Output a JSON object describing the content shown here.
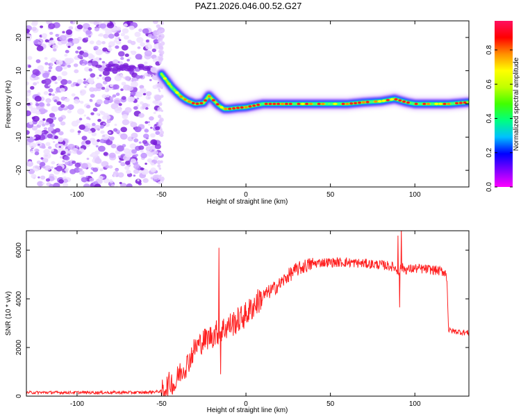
{
  "title": "PAZ1.2026.046.00.52.G27",
  "chart_data": [
    {
      "type": "heatmap",
      "title": "PAZ1.2026.046.00.52.G27",
      "xlabel": "Height of straight line (km)",
      "ylabel": "Frequency (Hz)",
      "xlim": [
        -130,
        132
      ],
      "ylim": [
        -25,
        25
      ],
      "xticks": [
        -100,
        -50,
        0,
        50,
        100
      ],
      "xtick_labels": [
        "-100",
        "-50",
        "0",
        "50",
        "100"
      ],
      "yticks": [
        -20,
        -10,
        0,
        10,
        20
      ],
      "ytick_labels": [
        "-20",
        "-10",
        "0",
        "10",
        "20"
      ],
      "noise_region_x": [
        -130,
        -50
      ],
      "ridge": {
        "x": [
          -50,
          -47,
          -44,
          -41,
          -38,
          -35,
          -30,
          -25,
          -22,
          -19,
          -16,
          -13,
          -10,
          -5,
          0,
          10,
          20,
          30,
          40,
          50,
          60,
          70,
          80,
          88,
          95,
          100,
          110,
          120,
          132
        ],
        "y": [
          9,
          7,
          5,
          3.5,
          2,
          1,
          0,
          0.3,
          2.5,
          1,
          -0.5,
          -1.5,
          -1.5,
          -1.2,
          -1,
          0,
          0,
          0,
          0,
          0,
          0,
          0.5,
          0.8,
          1.5,
          0.5,
          0,
          0,
          0,
          0.5
        ]
      },
      "colorbar": {
        "label": "Normalized spectral amplitude",
        "range": [
          0,
          0.97
        ],
        "ticks": [
          0.0,
          0.2,
          0.4,
          0.6,
          0.8
        ],
        "tick_labels": [
          "0.0",
          "0.2",
          "0.4",
          "0.6",
          "0.8"
        ],
        "colors": [
          "#ff00ff",
          "#8000ff",
          "#0000ff",
          "#00c0ff",
          "#00ff80",
          "#40ff00",
          "#c0ff00",
          "#ffff00",
          "#ff9000",
          "#ff0000",
          "#ff1060"
        ]
      }
    },
    {
      "type": "line",
      "xlabel": "Height of straight line (km)",
      "ylabel": "SNR (10 * v/v)",
      "xlim": [
        -130,
        132
      ],
      "ylim": [
        0,
        6800
      ],
      "xticks": [
        -100,
        -50,
        0,
        50,
        100
      ],
      "xtick_labels": [
        "-100",
        "-50",
        "0",
        "50",
        "100"
      ],
      "yticks": [
        0,
        2000,
        4000,
        6000
      ],
      "ytick_labels": [
        "0",
        "2000",
        "4000",
        "6000"
      ],
      "line_color": "#ff2020",
      "series": [
        {
          "name": "SNR",
          "x": [
            -130,
            -100,
            -60,
            -50,
            -47,
            -44,
            -42,
            -40,
            -35,
            -30,
            -25,
            -20,
            -15,
            -10,
            -5,
            0,
            5,
            10,
            15,
            20,
            25,
            30,
            35,
            40,
            45,
            50,
            60,
            70,
            80,
            85,
            88,
            90,
            92,
            95,
            100,
            110,
            118,
            119,
            120,
            125,
            132
          ],
          "y": [
            150,
            150,
            150,
            200,
            400,
            600,
            400,
            900,
            1300,
            2000,
            2300,
            2500,
            2700,
            2900,
            3100,
            3350,
            3750,
            4100,
            4350,
            4600,
            4950,
            5200,
            5350,
            5450,
            5500,
            5500,
            5500,
            5450,
            5400,
            5350,
            5300,
            5100,
            5300,
            5200,
            5250,
            5200,
            5100,
            4800,
            2700,
            2650,
            2600
          ]
        }
      ],
      "spikes": [
        {
          "x": -16,
          "y": 6100
        },
        {
          "x": -15,
          "y": 900
        },
        {
          "x": 90,
          "y": 6600
        },
        {
          "x": 91,
          "y": 3650
        },
        {
          "x": 92,
          "y": 6900
        }
      ]
    }
  ]
}
